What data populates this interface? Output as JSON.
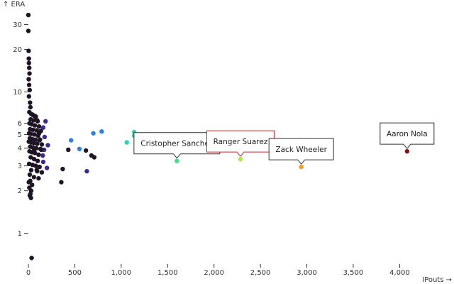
{
  "chart_data": {
    "type": "scatter",
    "xlabel": "IPouts →",
    "ylabel": "↑ ERA",
    "x_scale": "linear",
    "y_scale": "log",
    "xlim": [
      0,
      4150
    ],
    "ylim": [
      0.62,
      38
    ],
    "x_ticks": [
      0,
      500,
      1000,
      1500,
      2000,
      2500,
      3000,
      3500,
      4000
    ],
    "x_tick_labels": [
      "0",
      "500",
      "1,000",
      "1,500",
      "2,000",
      "2,500",
      "3,000",
      "3,500",
      "4,000"
    ],
    "y_ticks": [
      1,
      2,
      3,
      4,
      5,
      6,
      10,
      20,
      30
    ],
    "y_tick_labels": [
      "1",
      "2",
      "3",
      "4",
      "5",
      "6",
      "10",
      "20",
      "30"
    ],
    "color_encoding": "IPouts",
    "colors": {
      "low": "#1e1424",
      "mid_low": "#3b2b8f",
      "mid": "#2f7fe8",
      "teal": "#27d3b0",
      "green": "#a7ec4a",
      "orange": "#f59a21",
      "high": "#8a0f0a",
      "highlight_border": "#d62728"
    },
    "points": [
      {
        "x": 0,
        "era": 35.0
      },
      {
        "x": 0,
        "era": 27.0
      },
      {
        "x": 3,
        "era": 19.5
      },
      {
        "x": 5,
        "era": 17.2
      },
      {
        "x": 6,
        "era": 16.0
      },
      {
        "x": 9,
        "era": 14.8
      },
      {
        "x": 12,
        "era": 13.5
      },
      {
        "x": 4,
        "era": 12.3
      },
      {
        "x": 8,
        "era": 11.2
      },
      {
        "x": 14,
        "era": 10.3
      },
      {
        "x": 6,
        "era": 9.3
      },
      {
        "x": 18,
        "era": 8.4
      },
      {
        "x": 22,
        "era": 7.8
      },
      {
        "x": 10,
        "era": 7.2
      },
      {
        "x": 30,
        "era": 7.0
      },
      {
        "x": 45,
        "era": 6.9
      },
      {
        "x": 60,
        "era": 6.8
      },
      {
        "x": 80,
        "era": 6.7
      },
      {
        "x": 25,
        "era": 6.4
      },
      {
        "x": 55,
        "era": 6.3
      },
      {
        "x": 95,
        "era": 6.3
      },
      {
        "x": 12,
        "era": 6.0
      },
      {
        "x": 35,
        "era": 5.9
      },
      {
        "x": 70,
        "era": 5.8
      },
      {
        "x": 115,
        "era": 5.7
      },
      {
        "x": 160,
        "era": 5.6
      },
      {
        "x": 18,
        "era": 5.45
      },
      {
        "x": 50,
        "era": 5.4
      },
      {
        "x": 90,
        "era": 5.35
      },
      {
        "x": 135,
        "era": 5.3
      },
      {
        "x": 8,
        "era": 5.1
      },
      {
        "x": 28,
        "era": 5.05
      },
      {
        "x": 65,
        "era": 5.0
      },
      {
        "x": 105,
        "era": 4.9
      },
      {
        "x": 175,
        "era": 4.8
      },
      {
        "x": 15,
        "era": 4.7
      },
      {
        "x": 40,
        "era": 4.65
      },
      {
        "x": 75,
        "era": 4.6
      },
      {
        "x": 120,
        "era": 4.55
      },
      {
        "x": 5,
        "era": 4.45
      },
      {
        "x": 30,
        "era": 4.4
      },
      {
        "x": 58,
        "era": 4.35
      },
      {
        "x": 95,
        "era": 4.3
      },
      {
        "x": 145,
        "era": 4.25
      },
      {
        "x": 210,
        "era": 4.2
      },
      {
        "x": 20,
        "era": 4.1
      },
      {
        "x": 48,
        "era": 4.05
      },
      {
        "x": 85,
        "era": 4.0
      },
      {
        "x": 130,
        "era": 3.95
      },
      {
        "x": 170,
        "era": 3.9
      },
      {
        "x": 12,
        "era": 3.8
      },
      {
        "x": 38,
        "era": 3.75
      },
      {
        "x": 70,
        "era": 3.7
      },
      {
        "x": 110,
        "era": 3.6
      },
      {
        "x": 155,
        "era": 3.55
      },
      {
        "x": 25,
        "era": 3.45
      },
      {
        "x": 62,
        "era": 3.35
      },
      {
        "x": 100,
        "era": 3.25
      },
      {
        "x": 160,
        "era": 3.2
      },
      {
        "x": 8,
        "era": 3.1
      },
      {
        "x": 45,
        "era": 3.05
      },
      {
        "x": 80,
        "era": 3.0
      },
      {
        "x": 120,
        "era": 2.95
      },
      {
        "x": 200,
        "era": 2.9
      },
      {
        "x": 30,
        "era": 2.8
      },
      {
        "x": 95,
        "era": 2.75
      },
      {
        "x": 145,
        "era": 2.7
      },
      {
        "x": 15,
        "era": 2.6
      },
      {
        "x": 60,
        "era": 2.5
      },
      {
        "x": 110,
        "era": 2.45
      },
      {
        "x": 20,
        "era": 2.35
      },
      {
        "x": 5,
        "era": 2.3
      },
      {
        "x": 40,
        "era": 2.2
      },
      {
        "x": 10,
        "era": 2.1
      },
      {
        "x": 30,
        "era": 2.0
      },
      {
        "x": 22,
        "era": 1.9
      },
      {
        "x": 15,
        "era": 1.85
      },
      {
        "x": 28,
        "era": 1.78
      },
      {
        "x": 35,
        "era": 0.67
      },
      {
        "x": 100,
        "era": 6.2
      },
      {
        "x": 115,
        "era": 5.1
      },
      {
        "x": 125,
        "era": 4.6
      },
      {
        "x": 65,
        "era": 3.9
      },
      {
        "x": 140,
        "era": 3.9
      },
      {
        "x": 185,
        "era": 6.2
      },
      {
        "x": 90,
        "era": 2.8
      },
      {
        "x": 460,
        "era": 4.55
      },
      {
        "x": 550,
        "era": 3.95
      },
      {
        "x": 700,
        "era": 5.1
      },
      {
        "x": 790,
        "era": 5.25
      },
      {
        "x": 1060,
        "era": 4.4
      },
      {
        "x": 1140,
        "era": 5.2
      },
      {
        "x": 1140,
        "era": 4.9
      },
      {
        "x": 370,
        "era": 2.85
      },
      {
        "x": 355,
        "era": 2.3
      },
      {
        "x": 430,
        "era": 3.9
      },
      {
        "x": 620,
        "era": 3.85
      },
      {
        "x": 680,
        "era": 3.55
      },
      {
        "x": 710,
        "era": 3.45
      },
      {
        "x": 630,
        "era": 2.75
      },
      {
        "x": 1600,
        "era": 3.25,
        "name": "Cristopher Sanchez"
      },
      {
        "x": 2285,
        "era": 3.35,
        "name": "Ranger Suarez",
        "highlight": true
      },
      {
        "x": 2940,
        "era": 2.95,
        "name": "Zack Wheeler"
      },
      {
        "x": 4080,
        "era": 3.8,
        "name": "Aaron Nola"
      }
    ]
  }
}
